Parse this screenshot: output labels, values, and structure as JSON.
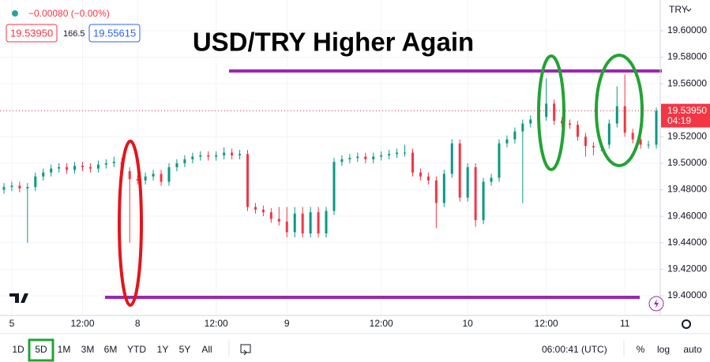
{
  "chart_data": {
    "type": "candlestick",
    "title": "USD/TRY Higher Again",
    "currency": "TRY",
    "change": "−0.00080 (−0.00%)",
    "bid": "19.53950",
    "spread": "166.5",
    "ask": "19.55615",
    "close_label": "19.53950",
    "countdown": "04:19",
    "up_color": "#089981",
    "down_color": "#f23645",
    "level_color": "#9c27b0",
    "levels": [
      19.5696,
      19.3988
    ],
    "grid": true,
    "ylim": [
      19.3851,
      19.6232
    ],
    "yticks": [
      {
        "value": 19.4,
        "label": "19.40000"
      },
      {
        "value": 19.42,
        "label": "19.42000"
      },
      {
        "value": 19.44,
        "label": "19.44000"
      },
      {
        "value": 19.46,
        "label": "19.46000"
      },
      {
        "value": 19.48,
        "label": "19.48000"
      },
      {
        "value": 19.5,
        "label": "19.50000"
      },
      {
        "value": 19.52,
        "label": "19.52000"
      },
      {
        "value": 19.54,
        "label": "19.54000"
      },
      {
        "value": 19.56,
        "label": "19.56000"
      },
      {
        "value": 19.58,
        "label": "19.58000"
      },
      {
        "value": 19.6,
        "label": "19.60000"
      }
    ],
    "categories": [
      null,
      "5",
      null,
      null,
      null,
      null,
      null,
      null,
      null,
      null,
      "12:00",
      null,
      null,
      null,
      null,
      null,
      null,
      "8",
      null,
      null,
      null,
      null,
      null,
      null,
      null,
      null,
      null,
      "12:00",
      null,
      null,
      null,
      null,
      null,
      null,
      null,
      null,
      "9",
      null,
      null,
      null,
      null,
      null,
      null,
      null,
      null,
      null,
      null,
      null,
      "12:00",
      null,
      null,
      null,
      null,
      null,
      null,
      null,
      null,
      null,
      null,
      "10",
      null,
      null,
      null,
      null,
      null,
      null,
      null,
      null,
      null,
      "12:00",
      null,
      null,
      null,
      null,
      null,
      null,
      null,
      null,
      null,
      "11",
      null,
      null,
      null,
      null
    ],
    "open": [
      19.48,
      19.482,
      19.483,
      19.481,
      19.482,
      19.49,
      19.493,
      19.496,
      19.497,
      19.495,
      19.498,
      19.497,
      19.496,
      19.499,
      19.5,
      19.501,
      19.494,
      19.488,
      19.487,
      19.49,
      19.492,
      19.486,
      19.497,
      19.5,
      19.503,
      19.505,
      19.506,
      19.505,
      19.506,
      19.508,
      19.506,
      19.507,
      19.467,
      19.465,
      19.463,
      19.458,
      19.456,
      19.448,
      19.462,
      19.447,
      19.463,
      19.447,
      19.464,
      19.501,
      19.503,
      19.504,
      19.505,
      19.503,
      19.505,
      19.506,
      19.507,
      19.508,
      19.508,
      19.493,
      19.49,
      19.487,
      19.47,
      19.492,
      19.515,
      19.474,
      19.497,
      19.457,
      19.486,
      19.489,
      19.515,
      19.518,
      19.524,
      19.53,
      19.533,
      19.535,
      19.545,
      19.532,
      19.53,
      19.529,
      19.52,
      19.513,
      19.512,
      19.514,
      19.53,
      19.543,
      19.523,
      19.518,
      19.514,
      19.514
    ],
    "high": [
      19.485,
      19.486,
      19.486,
      19.485,
      19.493,
      19.496,
      19.499,
      19.5,
      19.5,
      19.501,
      19.501,
      19.5,
      19.502,
      19.503,
      19.505,
      19.504,
      19.497,
      19.491,
      19.493,
      19.495,
      19.495,
      19.5,
      19.503,
      19.506,
      19.508,
      19.509,
      19.509,
      19.509,
      19.512,
      19.511,
      19.51,
      19.51,
      19.47,
      19.468,
      19.466,
      19.467,
      19.467,
      19.467,
      19.467,
      19.467,
      19.467,
      19.467,
      19.504,
      19.506,
      19.507,
      19.508,
      19.508,
      19.508,
      19.509,
      19.51,
      19.511,
      19.514,
      19.511,
      19.496,
      19.493,
      19.49,
      19.495,
      19.518,
      19.518,
      19.5,
      19.5,
      19.489,
      19.492,
      19.518,
      19.521,
      19.527,
      19.533,
      19.536,
      19.538,
      19.564,
      19.548,
      19.535,
      19.533,
      19.532,
      19.523,
      19.516,
      19.517,
      19.533,
      19.558,
      19.567,
      19.526,
      19.521,
      19.517,
      19.542
    ],
    "low": [
      19.477,
      19.479,
      19.478,
      19.44,
      19.479,
      19.487,
      19.49,
      19.493,
      19.492,
      19.492,
      19.494,
      19.493,
      19.493,
      19.496,
      19.497,
      19.491,
      19.44,
      19.484,
      19.484,
      19.487,
      19.483,
      19.483,
      19.494,
      19.497,
      19.5,
      19.502,
      19.502,
      19.502,
      19.503,
      19.503,
      19.503,
      19.464,
      19.462,
      19.46,
      19.455,
      19.453,
      19.444,
      19.444,
      19.444,
      19.444,
      19.444,
      19.444,
      19.461,
      19.498,
      19.5,
      19.501,
      19.5,
      19.5,
      19.502,
      19.503,
      19.504,
      19.505,
      19.49,
      19.487,
      19.484,
      19.451,
      19.467,
      19.489,
      19.471,
      19.471,
      19.452,
      19.454,
      19.483,
      19.486,
      19.512,
      19.515,
      19.47,
      19.527,
      19.53,
      19.532,
      19.529,
      19.527,
      19.526,
      19.517,
      19.505,
      19.506,
      19.509,
      19.511,
      19.527,
      19.52,
      19.515,
      19.511,
      19.511,
      19.511
    ],
    "close": [
      19.482,
      19.483,
      19.481,
      19.482,
      19.49,
      19.493,
      19.496,
      19.497,
      19.495,
      19.498,
      19.497,
      19.496,
      19.499,
      19.5,
      19.501,
      19.494,
      19.488,
      19.487,
      19.49,
      19.492,
      19.486,
      19.497,
      19.5,
      19.503,
      19.505,
      19.506,
      19.505,
      19.506,
      19.508,
      19.506,
      19.507,
      19.467,
      19.465,
      19.463,
      19.458,
      19.456,
      19.448,
      19.462,
      19.447,
      19.463,
      19.447,
      19.464,
      19.501,
      19.503,
      19.504,
      19.505,
      19.503,
      19.505,
      19.506,
      19.507,
      19.508,
      19.508,
      19.493,
      19.49,
      19.487,
      19.47,
      19.492,
      19.515,
      19.474,
      19.497,
      19.457,
      19.486,
      19.489,
      19.515,
      19.518,
      19.524,
      19.53,
      19.533,
      19.535,
      19.545,
      19.532,
      19.53,
      19.529,
      19.52,
      19.513,
      19.512,
      19.514,
      19.53,
      19.543,
      19.523,
      19.518,
      19.514,
      19.514,
      19.5395
    ]
  },
  "toolbar": {
    "ranges": [
      "1D",
      "5D",
      "1M",
      "3M",
      "6M",
      "YTD",
      "1Y",
      "5Y",
      "All"
    ],
    "active_range": 1,
    "clock": "06:00:41 (UTC)",
    "options": [
      "%",
      "log",
      "auto"
    ]
  }
}
